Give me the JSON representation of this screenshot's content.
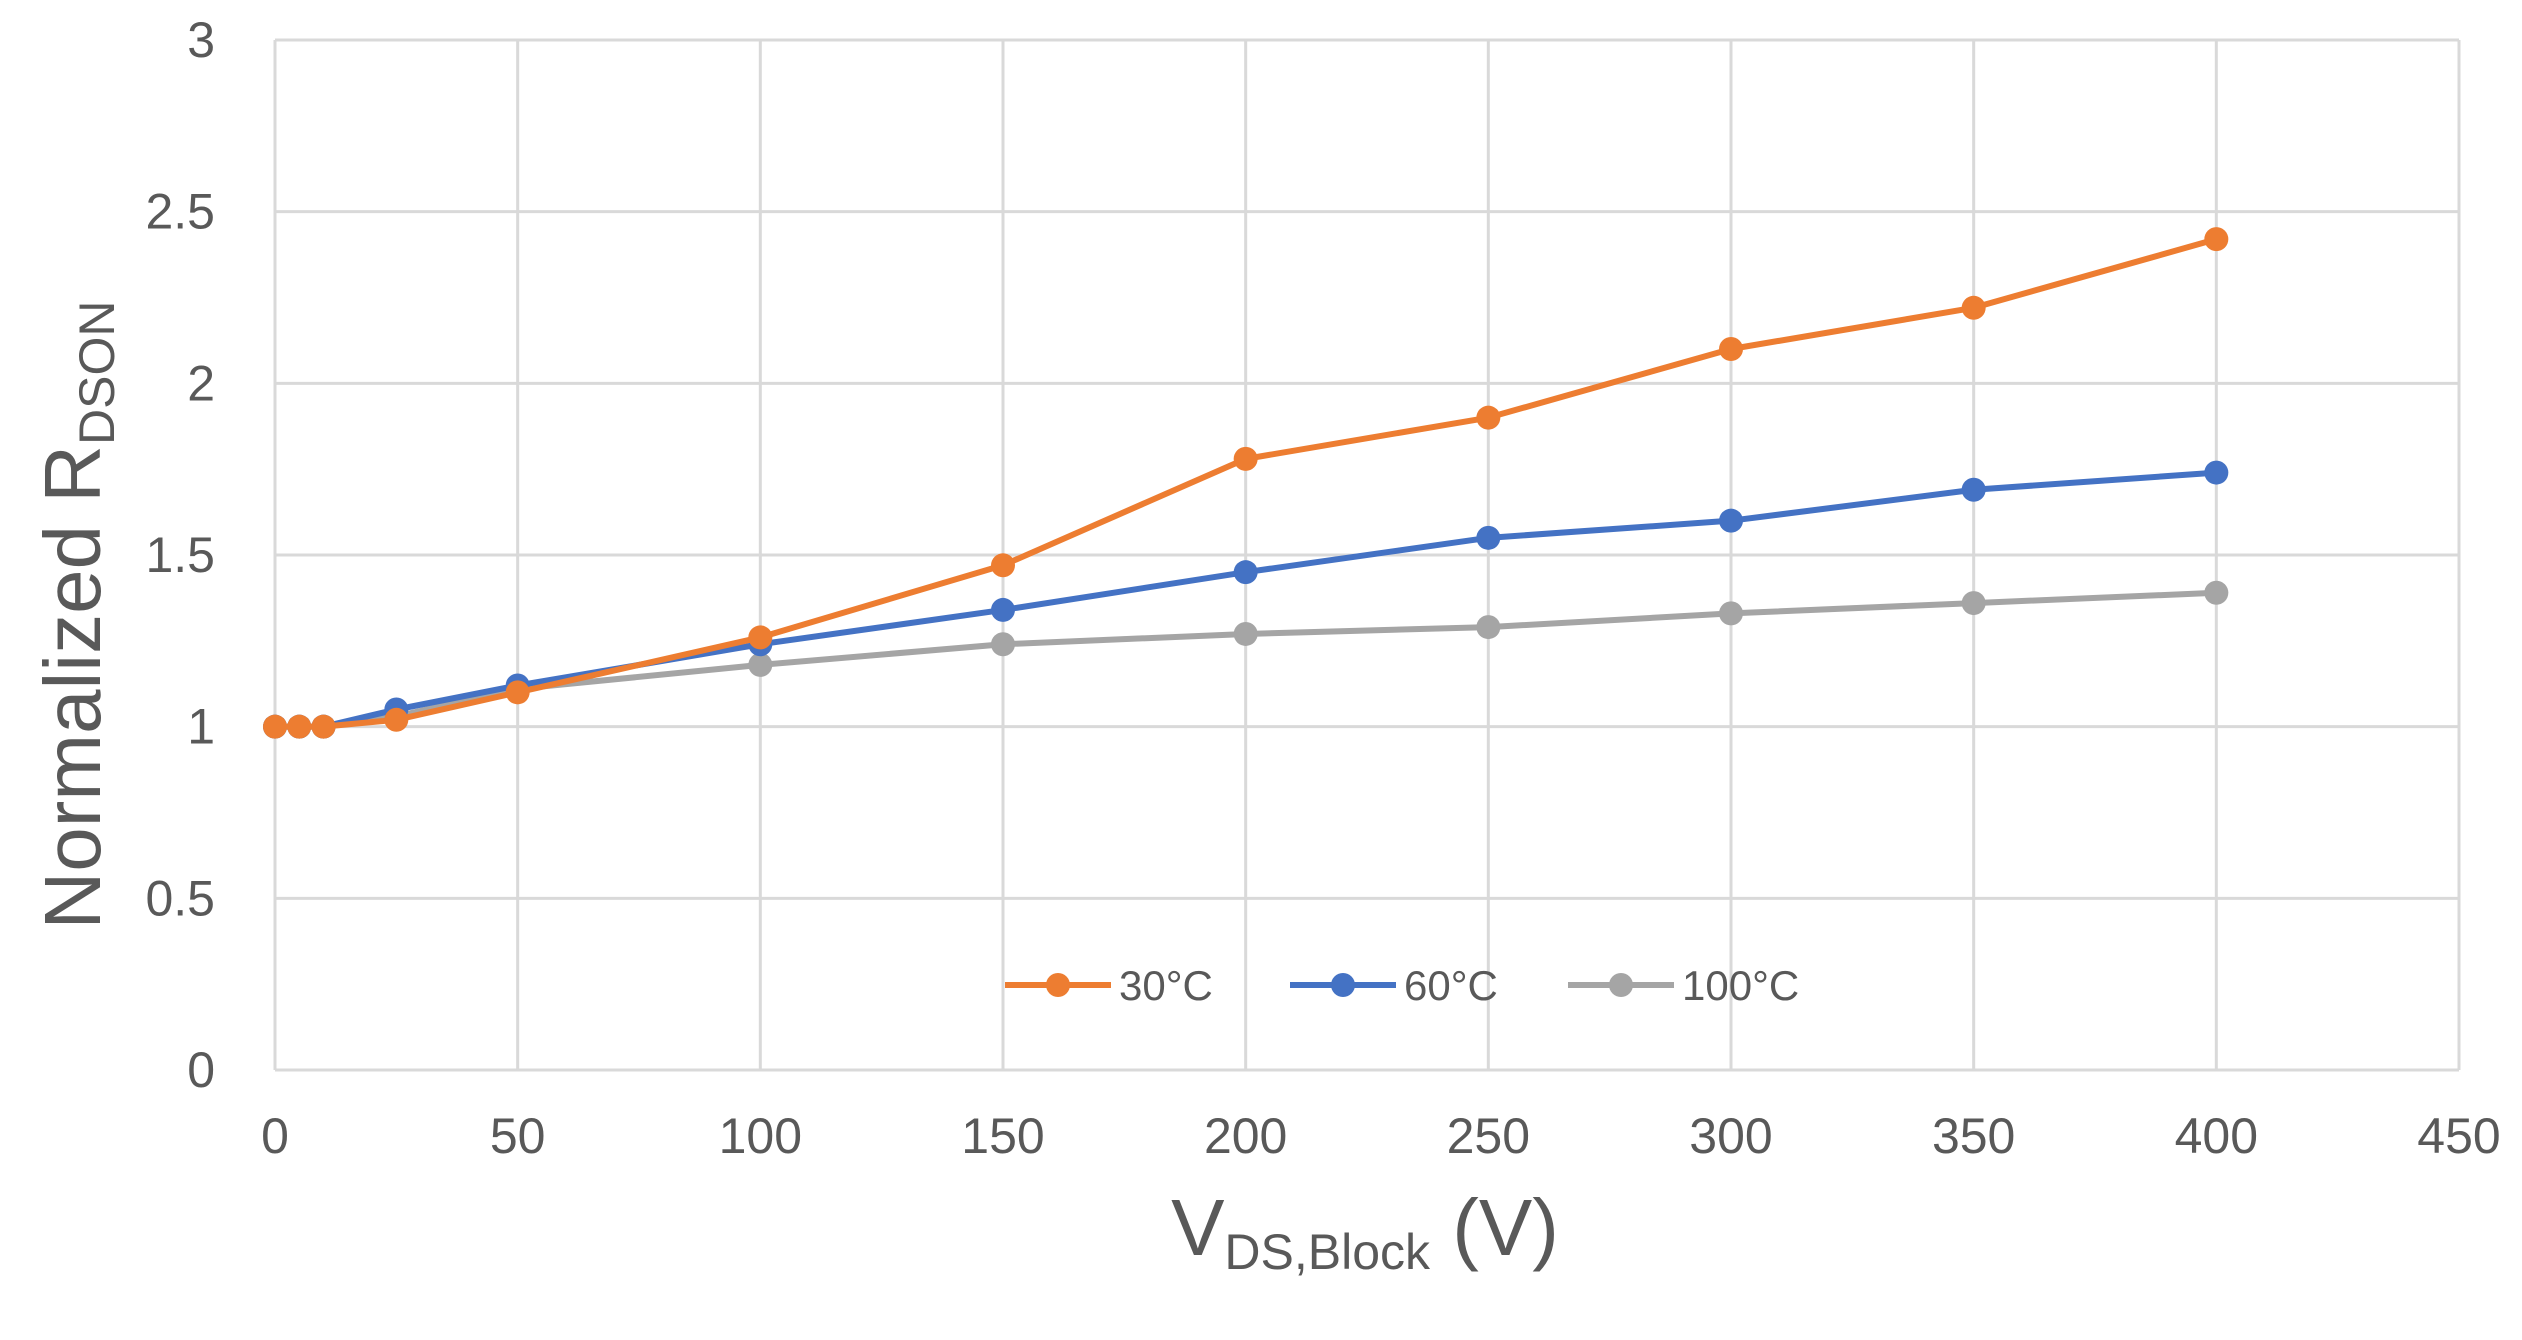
{
  "chart_data": {
    "type": "line",
    "title": "",
    "xlabel": {
      "main": "V",
      "subscript": "DS,Block",
      "suffix": " (V)"
    },
    "ylabel": {
      "main": "Normalized R",
      "subscript": "DSON"
    },
    "xlim": [
      0,
      450
    ],
    "ylim": [
      0,
      3
    ],
    "xticks": [
      0,
      50,
      100,
      150,
      200,
      250,
      300,
      350,
      400,
      450
    ],
    "yticks": [
      0,
      0.5,
      1,
      1.5,
      2,
      2.5,
      3
    ],
    "xtick_labels": [
      "0",
      "50",
      "100",
      "150",
      "200",
      "250",
      "300",
      "350",
      "400",
      "450"
    ],
    "ytick_labels": [
      "0",
      "0.5",
      "1",
      "1.5",
      "2",
      "2.5",
      "3"
    ],
    "grid": true,
    "legend_position": "bottom-center",
    "series": [
      {
        "name": "30°C",
        "color": "#ED7D31",
        "x": [
          0,
          5,
          10,
          25,
          50,
          100,
          150,
          200,
          250,
          300,
          350,
          400
        ],
        "y": [
          1.0,
          1.0,
          1.0,
          1.02,
          1.1,
          1.26,
          1.47,
          1.78,
          1.9,
          2.1,
          2.22,
          2.42
        ]
      },
      {
        "name": "60°C",
        "color": "#4472C4",
        "x": [
          0,
          5,
          10,
          25,
          50,
          100,
          150,
          200,
          250,
          300,
          350,
          400
        ],
        "y": [
          1.0,
          1.0,
          1.0,
          1.05,
          1.12,
          1.24,
          1.34,
          1.45,
          1.55,
          1.6,
          1.69,
          1.74
        ]
      },
      {
        "name": "100°C",
        "color": "#A5A5A5",
        "x": [
          0,
          5,
          10,
          25,
          50,
          100,
          150,
          200,
          250,
          300,
          350,
          400
        ],
        "y": [
          1.0,
          1.0,
          1.0,
          1.03,
          1.11,
          1.18,
          1.24,
          1.27,
          1.29,
          1.33,
          1.36,
          1.39
        ]
      }
    ]
  }
}
